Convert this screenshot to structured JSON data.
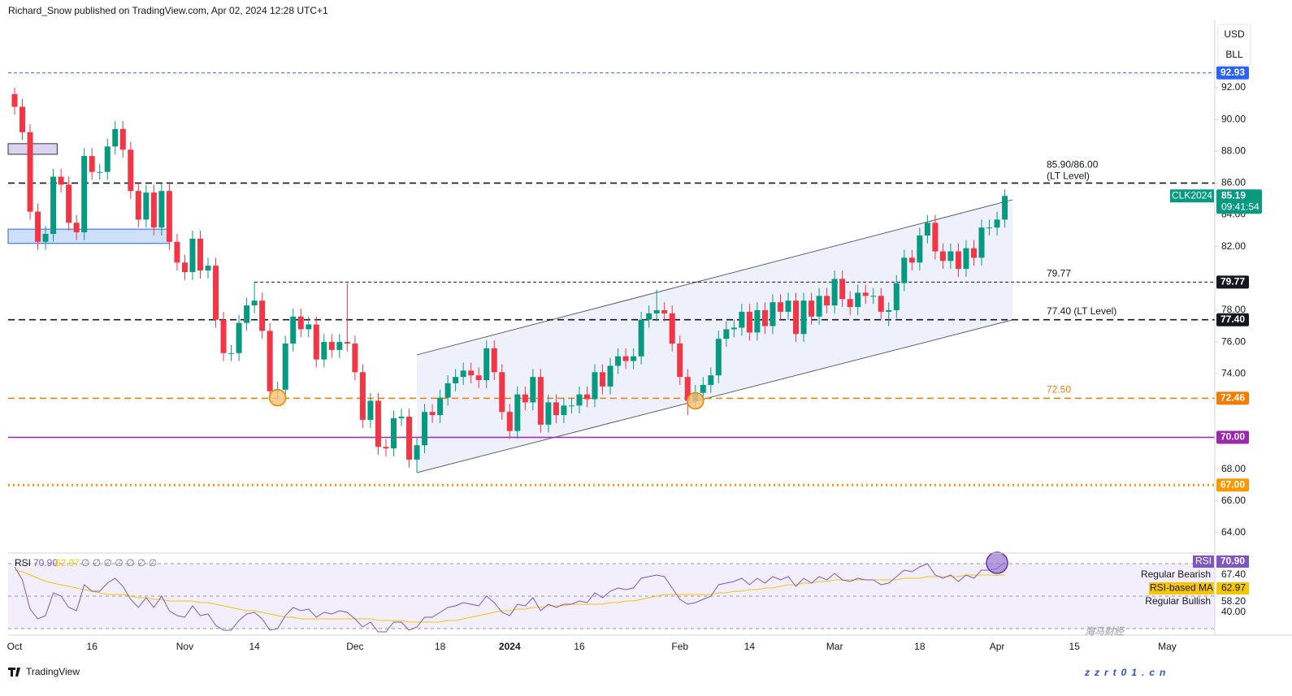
{
  "header": {
    "byline": "Richard_Snow published on TradingView.com, Apr 02, 2024 12:28 UTC+1",
    "currency": "USD",
    "unit": "BLL",
    "brand": "TradingView",
    "watermark": "海马财经",
    "watermark_url": "zzrt01.cn"
  },
  "chart_data": {
    "type": "candlestick",
    "symbol": "CLK2024",
    "last_price": 85.19,
    "countdown": "09:41:54",
    "up_color": "#089981",
    "down_color": "#f23645",
    "categories": [
      "Oct",
      null,
      null,
      null,
      null,
      null,
      null,
      null,
      null,
      null,
      "16",
      null,
      null,
      null,
      null,
      null,
      null,
      null,
      null,
      null,
      null,
      null,
      "Nov",
      null,
      null,
      null,
      null,
      null,
      null,
      null,
      null,
      "14",
      null,
      null,
      null,
      null,
      null,
      null,
      null,
      null,
      null,
      null,
      null,
      null,
      "Dec",
      null,
      null,
      null,
      null,
      null,
      null,
      null,
      null,
      null,
      null,
      "18",
      null,
      null,
      null,
      null,
      null,
      null,
      null,
      null,
      "2024",
      null,
      null,
      null,
      null,
      null,
      null,
      null,
      null,
      "16",
      null,
      null,
      null,
      null,
      null,
      null,
      null,
      null,
      null,
      null,
      null,
      null,
      "Feb",
      null,
      null,
      null,
      null,
      null,
      null,
      null,
      null,
      "14",
      null,
      null,
      null,
      null,
      null,
      null,
      null,
      null,
      null,
      null,
      "Mar",
      null,
      null,
      null,
      null,
      null,
      null,
      null,
      null,
      null,
      null,
      "18",
      null,
      null,
      null,
      null,
      null,
      null,
      null,
      null,
      null,
      "Apr",
      null,
      null,
      null,
      null,
      null,
      null,
      null,
      null,
      null,
      "15",
      null,
      null,
      null,
      null,
      null,
      null,
      null,
      null,
      null,
      null,
      null,
      "May"
    ],
    "open": [
      91.6,
      90.8,
      89.2,
      84.2,
      82.3,
      82.8,
      86.4,
      85.9,
      83.5,
      82.9,
      87.7,
      86.7,
      86.7,
      88.3,
      89.4,
      88.1,
      85.5,
      83.7,
      85.4,
      83.2,
      85.5,
      82.3,
      81.0,
      80.4,
      82.5,
      80.5,
      80.8,
      77.4,
      75.3,
      75.3,
      77.2,
      78.3,
      78.6,
      76.7,
      72.9,
      73.0,
      75.9,
      77.6,
      76.8,
      77.1,
      74.9,
      76.0,
      75.5,
      76.0,
      75.9,
      74.1,
      71.1,
      72.3,
      69.4,
      69.3,
      71.2,
      71.3,
      68.6,
      69.5,
      71.6,
      71.4,
      72.5,
      73.4,
      73.8,
      74.2,
      73.9,
      73.6,
      75.6,
      74.1,
      71.6,
      70.4,
      72.7,
      72.2,
      73.8,
      70.8,
      72.2,
      71.4,
      72.0,
      72.0,
      72.7,
      72.4,
      74.1,
      73.2,
      74.5,
      75.1,
      74.8,
      75.1,
      77.4,
      77.8,
      78.0,
      77.8,
      75.9,
      73.8,
      72.3,
      72.8,
      73.3,
      73.9,
      76.2,
      76.8,
      76.9,
      77.9,
      76.6,
      78.0,
      77.0,
      78.5,
      77.9,
      78.6,
      76.5,
      78.6,
      77.6,
      78.9,
      78.3,
      79.97,
      78.7,
      78.2,
      79.1,
      78.9,
      78.9,
      77.9,
      78.0,
      79.7,
      81.3,
      81.0,
      82.7,
      83.5,
      81.7,
      81.1,
      81.7,
      80.6,
      81.9,
      81.3,
      83.2,
      83.2,
      83.7,
      null,
      null,
      null,
      null,
      null,
      null,
      null,
      null,
      null,
      null,
      null,
      null,
      null,
      null,
      null,
      null,
      null,
      null,
      null,
      null,
      null
    ],
    "high": [
      92.0,
      91.3,
      89.7,
      84.7,
      83.3,
      86.9,
      86.9,
      86.4,
      84.0,
      88.2,
      88.2,
      87.2,
      88.8,
      89.9,
      89.9,
      88.6,
      86.0,
      85.9,
      85.9,
      86.0,
      86.0,
      82.8,
      81.5,
      83.0,
      83.0,
      81.3,
      81.3,
      77.9,
      75.8,
      77.7,
      78.8,
      79.77,
      79.1,
      77.2,
      73.5,
      76.4,
      78.1,
      78.1,
      77.6,
      77.6,
      76.5,
      76.5,
      76.5,
      79.7,
      76.4,
      74.6,
      72.8,
      72.8,
      69.9,
      71.7,
      71.8,
      71.8,
      70.0,
      72.1,
      72.1,
      73.0,
      73.9,
      74.3,
      74.7,
      74.7,
      74.4,
      76.1,
      76.1,
      74.6,
      72.1,
      73.2,
      73.2,
      74.3,
      74.3,
      72.7,
      72.7,
      72.5,
      72.5,
      73.2,
      73.2,
      74.6,
      74.6,
      75.0,
      75.6,
      75.6,
      75.6,
      77.9,
      78.3,
      79.3,
      78.5,
      78.3,
      76.4,
      74.3,
      73.3,
      73.8,
      74.4,
      76.7,
      77.3,
      77.4,
      78.4,
      78.4,
      78.5,
      78.5,
      79.0,
      79.0,
      79.1,
      79.1,
      79.1,
      79.1,
      79.4,
      79.4,
      80.5,
      80.5,
      79.2,
      79.6,
      79.6,
      79.4,
      79.4,
      78.5,
      80.2,
      81.8,
      81.8,
      83.2,
      84.0,
      84.0,
      82.2,
      82.2,
      82.2,
      82.4,
      82.4,
      83.7,
      83.7,
      84.2,
      85.6,
      null,
      null,
      null,
      null,
      null,
      null,
      null,
      null,
      null,
      null,
      null,
      null,
      null,
      null,
      null,
      null,
      null,
      null,
      null,
      null,
      null
    ],
    "low": [
      90.3,
      88.7,
      83.7,
      81.8,
      81.8,
      82.3,
      85.4,
      83.0,
      82.4,
      82.4,
      86.2,
      86.2,
      86.2,
      87.8,
      87.6,
      85.0,
      83.2,
      83.2,
      82.7,
      82.7,
      81.8,
      80.5,
      79.9,
      79.9,
      80.0,
      80.0,
      76.9,
      74.8,
      74.8,
      74.8,
      76.7,
      77.8,
      76.2,
      72.4,
      72.4,
      72.5,
      75.4,
      76.3,
      76.3,
      74.4,
      74.4,
      75.0,
      75.0,
      75.4,
      73.6,
      70.6,
      70.6,
      68.9,
      68.8,
      68.8,
      70.7,
      68.1,
      67.8,
      69.0,
      70.9,
      70.9,
      72.0,
      72.9,
      73.3,
      73.4,
      73.1,
      73.1,
      73.6,
      71.1,
      69.9,
      69.9,
      71.7,
      71.7,
      70.3,
      70.3,
      70.9,
      70.9,
      71.5,
      71.5,
      71.9,
      71.9,
      72.7,
      72.7,
      74.0,
      74.3,
      74.3,
      74.6,
      76.9,
      77.3,
      77.3,
      75.4,
      73.3,
      71.4,
      71.8,
      72.3,
      72.8,
      73.4,
      75.7,
      76.3,
      76.4,
      76.1,
      76.1,
      76.5,
      76.5,
      77.4,
      77.4,
      76.0,
      76.0,
      77.1,
      77.1,
      77.8,
      77.8,
      78.2,
      77.7,
      77.7,
      78.4,
      78.4,
      77.4,
      77.0,
      77.5,
      79.2,
      80.5,
      80.5,
      82.2,
      81.2,
      80.6,
      80.6,
      80.1,
      80.1,
      80.8,
      80.8,
      82.7,
      82.7,
      83.2,
      null,
      null,
      null,
      null,
      null,
      null,
      null,
      null,
      null,
      null,
      null,
      null,
      null,
      null,
      null,
      null,
      null,
      null,
      null,
      null,
      null
    ],
    "close": [
      90.8,
      89.2,
      84.2,
      82.3,
      82.8,
      86.4,
      85.9,
      83.5,
      82.9,
      87.7,
      86.7,
      86.7,
      88.3,
      89.4,
      88.1,
      85.5,
      83.7,
      85.4,
      83.2,
      85.5,
      82.3,
      81.0,
      80.4,
      82.5,
      80.5,
      80.8,
      77.4,
      75.3,
      75.3,
      77.2,
      78.3,
      78.6,
      76.7,
      72.9,
      73.0,
      75.9,
      77.6,
      76.8,
      77.1,
      74.9,
      76.0,
      75.5,
      76.0,
      75.9,
      74.1,
      71.1,
      72.3,
      69.4,
      69.3,
      71.2,
      71.3,
      68.6,
      69.5,
      71.6,
      71.4,
      72.5,
      73.4,
      73.8,
      74.2,
      73.9,
      73.6,
      75.6,
      74.1,
      71.6,
      70.4,
      72.7,
      72.2,
      73.8,
      70.8,
      72.2,
      71.4,
      72.0,
      72.0,
      72.7,
      72.4,
      74.1,
      73.2,
      74.5,
      75.1,
      74.8,
      75.1,
      77.4,
      77.8,
      78.0,
      77.8,
      75.9,
      73.8,
      72.3,
      72.8,
      73.3,
      73.9,
      76.2,
      76.8,
      76.9,
      77.9,
      76.6,
      78.0,
      77.0,
      78.5,
      77.9,
      78.6,
      76.5,
      78.6,
      77.6,
      78.9,
      78.3,
      79.97,
      78.7,
      78.2,
      79.1,
      78.9,
      78.9,
      77.9,
      78.0,
      79.7,
      81.3,
      81.0,
      82.7,
      83.5,
      81.7,
      81.1,
      81.7,
      80.6,
      81.9,
      81.3,
      83.2,
      83.2,
      83.7,
      85.19,
      null,
      null,
      null,
      null,
      null,
      null,
      null,
      null,
      null,
      null,
      null,
      null,
      null,
      null,
      null,
      null,
      null,
      null,
      null,
      null,
      null
    ],
    "ylim": [
      62.77,
      96.24
    ],
    "yticks": [
      {
        "value": 92,
        "label": "92.00"
      },
      {
        "value": 90,
        "label": "90.00"
      },
      {
        "value": 88,
        "label": "88.00"
      },
      {
        "value": 86,
        "label": "86.00"
      },
      {
        "value": 84,
        "label": "84.00"
      },
      {
        "value": 82,
        "label": "82.00"
      },
      {
        "value": 78,
        "label": "78.00"
      },
      {
        "value": 76,
        "label": "76.00"
      },
      {
        "value": 74,
        "label": "74.00"
      },
      {
        "value": 68,
        "label": "68.00"
      },
      {
        "value": 66,
        "label": "66.00"
      },
      {
        "value": 64,
        "label": "64.00"
      }
    ],
    "levels": [
      {
        "value": 92.93,
        "tag": true,
        "color": "#2962ff",
        "style": "dashed-thin"
      },
      {
        "value": 86,
        "note": "85.90/86.00",
        "note2": "(LT Level)",
        "color": "#131722",
        "style": "dashed"
      },
      {
        "value": 79.77,
        "tag": true,
        "note": "79.77",
        "color": "#131722",
        "style": "dashed-thin",
        "from_high": true
      },
      {
        "value": 77.4,
        "tag": "77.40",
        "note": "77.40 (LT Level)",
        "color": "#131722",
        "style": "dashed"
      },
      {
        "value": 72.46,
        "tag": true,
        "note": "72.50",
        "color": "#f57c00",
        "style": "dashed"
      },
      {
        "value": 70,
        "tag": "70.00",
        "color": "#9c27b0",
        "style": "solid"
      },
      {
        "value": 67,
        "tag": "67.00",
        "color": "#ff9800",
        "style": "dotted"
      }
    ],
    "channel": {
      "span": [
        52,
        129
      ],
      "upper": [
        75.19,
        84.95
      ],
      "lower": [
        67.78,
        77.39
      ],
      "color": "#5d606b",
      "fill": "#eef1fb"
    },
    "zones": [
      {
        "span": [
          0,
          5.5
        ],
        "top": 88.48,
        "bottom": 87.81,
        "fill": "#dcd3f2",
        "stroke": "#333333"
      },
      {
        "span": [
          0,
          20
        ],
        "top": 83.1,
        "bottom": 82.2,
        "fill": "#cfe0fb",
        "stroke": "#2962ff"
      }
    ],
    "markers": [
      {
        "index": 34,
        "value": 72.5
      },
      {
        "index": 88,
        "value": 72.3
      }
    ],
    "rsi": {
      "title": "RSI",
      "color": "#7e57c2",
      "values": [
        68,
        60,
        42,
        36,
        38,
        52,
        50,
        43,
        41,
        57,
        53,
        53,
        58,
        61,
        56,
        48,
        43,
        49,
        43,
        50,
        41,
        38,
        37,
        44,
        38,
        39,
        32,
        29,
        29,
        35,
        39,
        40,
        36,
        29,
        30,
        38,
        43,
        41,
        42,
        37,
        40,
        39,
        41,
        40,
        36,
        31,
        34,
        28,
        28,
        34,
        34,
        29,
        31,
        37,
        37,
        40,
        43,
        44,
        46,
        45,
        44,
        50,
        46,
        40,
        38,
        45,
        44,
        49,
        41,
        45,
        43,
        45,
        45,
        47,
        46,
        52,
        49,
        53,
        55,
        54,
        55,
        61,
        62,
        63,
        62,
        55,
        48,
        45,
        46,
        48,
        50,
        57,
        58,
        59,
        61,
        57,
        61,
        58,
        62,
        60,
        62,
        56,
        61,
        58,
        62,
        60,
        64,
        60,
        59,
        61,
        60,
        60,
        57,
        58,
        62,
        66,
        65,
        68,
        70,
        63,
        61,
        63,
        59,
        63,
        61,
        66,
        66,
        67,
        70.9,
        null,
        null,
        null,
        null,
        null,
        null,
        null,
        null,
        null,
        null,
        null,
        null,
        null,
        null,
        null,
        null,
        null,
        null,
        null,
        null,
        null
      ],
      "last_label": "70.90",
      "ma_name": "RSI-based MA",
      "ma_color": "#f7c600",
      "ma": [
        66,
        65,
        63,
        61,
        59,
        58,
        57,
        56,
        55,
        54,
        53,
        52,
        51,
        51,
        51,
        50,
        49,
        49,
        48,
        48,
        47,
        47,
        47,
        47,
        46,
        46,
        45,
        44,
        43,
        42,
        41,
        41,
        40,
        39,
        38,
        37,
        37,
        36,
        36,
        36,
        36,
        36,
        36,
        36,
        36,
        36,
        36,
        35,
        35,
        35,
        35,
        34,
        34,
        34,
        34,
        34,
        35,
        35,
        36,
        37,
        38,
        39,
        40,
        41,
        41,
        42,
        42,
        43,
        43,
        44,
        44,
        44,
        45,
        45,
        45,
        45,
        45,
        46,
        46,
        47,
        47,
        48,
        49,
        50,
        51,
        51,
        51,
        51,
        51,
        51,
        51,
        52,
        52,
        53,
        53,
        54,
        54,
        55,
        55,
        56,
        57,
        57,
        58,
        58,
        59,
        59,
        60,
        60,
        60,
        60,
        60,
        60,
        60,
        60,
        60,
        61,
        61,
        61,
        62,
        62,
        62,
        62,
        62,
        63,
        63,
        63,
        63,
        62.9,
        62.97,
        null,
        null,
        null,
        null,
        null,
        null,
        null,
        null,
        null,
        null,
        null,
        null,
        null,
        null,
        null,
        null,
        null,
        null,
        null,
        null,
        null
      ],
      "ylim": [
        26,
        76
      ],
      "bands": [
        70,
        50,
        30
      ],
      "legend_extra": "∅ ∅ ∅ ∅ ∅ ∅ ∅",
      "tags": [
        {
          "name": "Regular Bearish",
          "value": 67.4,
          "label": "67.40"
        },
        {
          "name": "Regular Bullish",
          "value": 58.2,
          "label": "58.20"
        },
        {
          "value": 40,
          "label": "40.00"
        }
      ],
      "marker": {
        "index": 127,
        "value": 70.5
      }
    }
  }
}
